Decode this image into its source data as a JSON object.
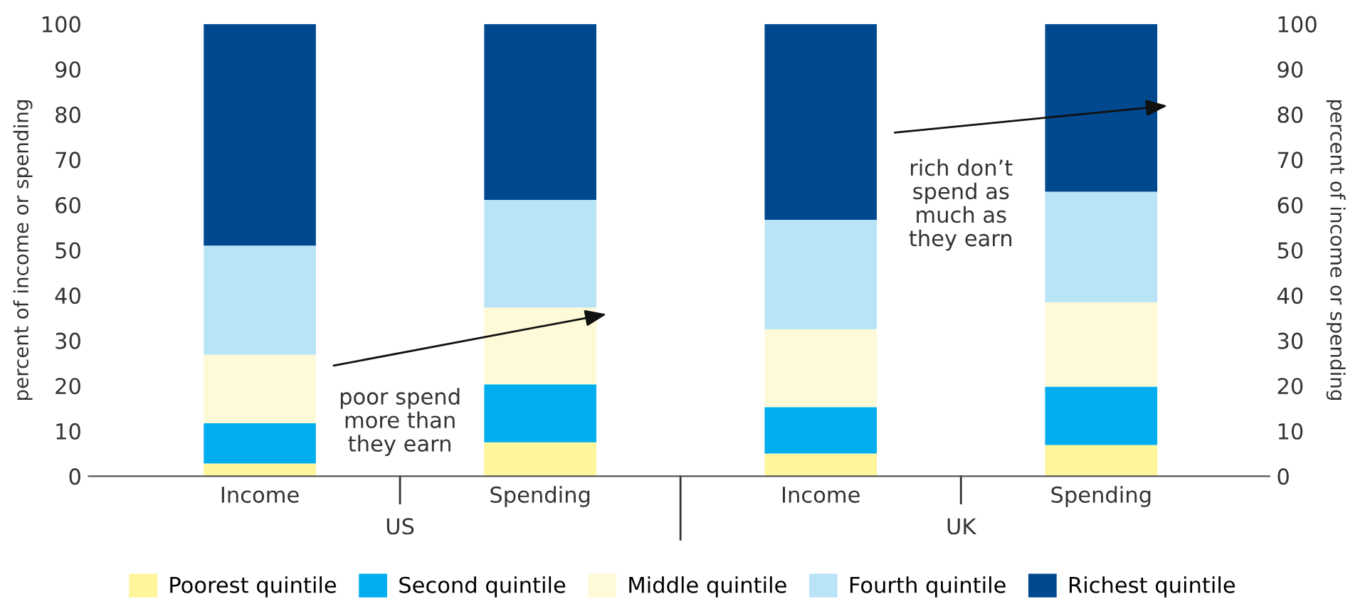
{
  "chart_data": {
    "type": "bar",
    "stacked": true,
    "categories": [
      "Income",
      "Spending",
      "Income",
      "Spending"
    ],
    "ylabel": "percent of income or spending",
    "y2label": "percent of income or spending",
    "ylim": [
      0,
      100
    ],
    "yticks": [
      0,
      10,
      20,
      30,
      40,
      50,
      60,
      70,
      80,
      90,
      100
    ],
    "y2lim": [
      0,
      100
    ],
    "y2ticks": [
      0,
      10,
      20,
      30,
      40,
      50,
      60,
      70,
      80,
      90,
      100
    ],
    "series": [
      {
        "name": "Poorest quintile",
        "color": "#fff59a",
        "values": [
          2.8,
          7.5,
          5.0,
          6.9
        ]
      },
      {
        "name": "Second quintile",
        "color": "#00aeef",
        "values": [
          8.9,
          12.8,
          10.3,
          12.9
        ]
      },
      {
        "name": "Middle quintile",
        "color": "#fef9d7",
        "values": [
          15.2,
          17.0,
          17.2,
          18.7
        ]
      },
      {
        "name": "Fourth quintile",
        "color": "#b9e4f8",
        "values": [
          24.1,
          23.8,
          24.2,
          24.4
        ]
      },
      {
        "name": "Richest quintile",
        "color": "#00498f",
        "values": [
          49.0,
          38.9,
          43.3,
          37.1
        ]
      }
    ],
    "annotations": [
      "US",
      "UK",
      "poor spend\nmore than\nthey earn",
      "rich don’t\nspend as\nmuch as\nthey earn"
    ],
    "legend": "bottom",
    "grid": false
  }
}
